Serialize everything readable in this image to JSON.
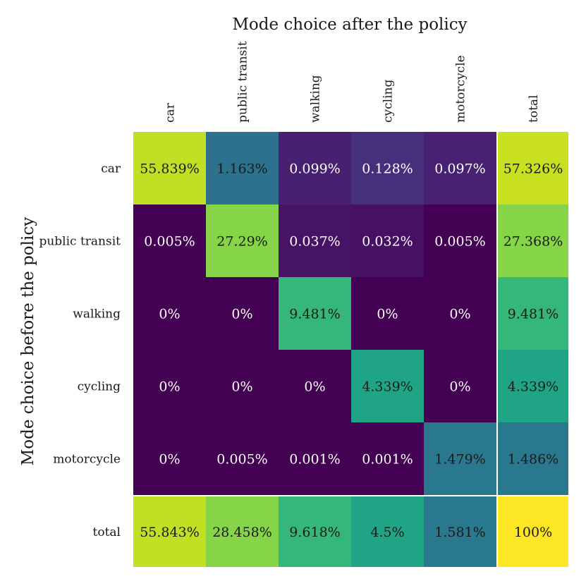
{
  "chart_data": {
    "type": "heatmap",
    "title": "",
    "xlabel": "Mode choice after the policy",
    "ylabel": "Mode choice before the policy",
    "column_labels": [
      "car",
      "public transit",
      "walking",
      "cycling",
      "motorcycle",
      "total"
    ],
    "row_labels": [
      "car",
      "public transit",
      "walking",
      "cycling",
      "motorcycle",
      "total"
    ],
    "values": [
      [
        55.839,
        1.163,
        0.099,
        0.128,
        0.097,
        57.326
      ],
      [
        0.005,
        27.29,
        0.037,
        0.032,
        0.005,
        27.368
      ],
      [
        0,
        0,
        9.481,
        0,
        0,
        9.481
      ],
      [
        0,
        0,
        0,
        4.339,
        0,
        4.339
      ],
      [
        0,
        0.005,
        0.001,
        0.001,
        1.479,
        1.486
      ],
      [
        55.843,
        28.458,
        9.618,
        4.5,
        1.581,
        100
      ]
    ],
    "cell_labels": [
      [
        "55.839%",
        "1.163%",
        "0.099%",
        "0.128%",
        "0.097%",
        "57.326%"
      ],
      [
        "0.005%",
        "27.29%",
        "0.037%",
        "0.032%",
        "0.005%",
        "27.368%"
      ],
      [
        "0%",
        "0%",
        "9.481%",
        "0%",
        "0%",
        "9.481%"
      ],
      [
        "0%",
        "0%",
        "0%",
        "4.339%",
        "0%",
        "4.339%"
      ],
      [
        "0%",
        "0.005%",
        "0.001%",
        "0.001%",
        "1.479%",
        "1.486%"
      ],
      [
        "55.843%",
        "28.458%",
        "9.618%",
        "4.5%",
        "1.581%",
        "100%"
      ]
    ],
    "colors": [
      [
        "#c2df23",
        "#2c728e",
        "#482071",
        "#46307e",
        "#482173",
        "#c8e020"
      ],
      [
        "#440154",
        "#86d549",
        "#471365",
        "#471063",
        "#440154",
        "#86d549"
      ],
      [
        "#440154",
        "#440154",
        "#35b779",
        "#440154",
        "#440154",
        "#35b779"
      ],
      [
        "#440154",
        "#440154",
        "#440154",
        "#20a486",
        "#440154",
        "#20a486"
      ],
      [
        "#440154",
        "#440154",
        "#440154",
        "#440154",
        "#2a788e",
        "#2a788e"
      ],
      [
        "#c2df23",
        "#86d549",
        "#35b779",
        "#20a486",
        "#2a788e",
        "#fde725"
      ]
    ],
    "dark_text_cells": [
      [
        true,
        true,
        false,
        false,
        false,
        true
      ],
      [
        false,
        true,
        false,
        false,
        false,
        true
      ],
      [
        false,
        false,
        true,
        false,
        false,
        true
      ],
      [
        false,
        false,
        false,
        true,
        false,
        true
      ],
      [
        false,
        false,
        false,
        false,
        true,
        true
      ],
      [
        true,
        true,
        true,
        true,
        true,
        true
      ]
    ],
    "colormap": "viridis",
    "grid": false
  }
}
